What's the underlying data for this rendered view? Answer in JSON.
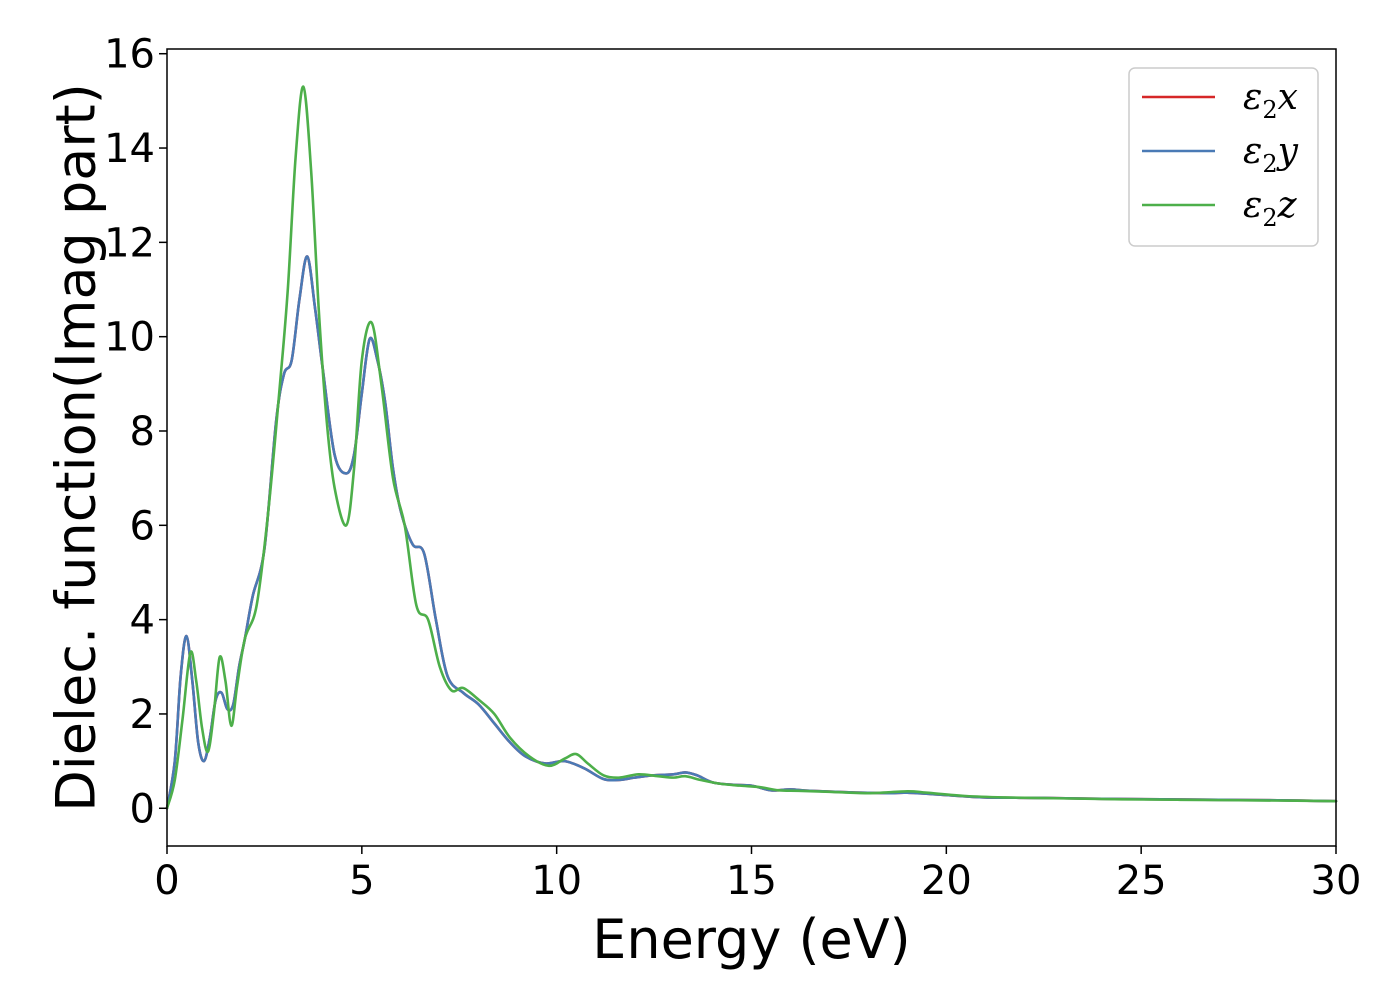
{
  "chart_data": {
    "type": "line",
    "xlabel": "Energy (eV)",
    "ylabel": "Dielec. function(Imag part)",
    "xlim": [
      0,
      30
    ],
    "ylim": [
      -0.8,
      16.1
    ],
    "xticks": [
      0,
      5,
      10,
      15,
      20,
      25,
      30
    ],
    "xtick_labels": [
      "0",
      "5",
      "10",
      "15",
      "20",
      "25",
      "30"
    ],
    "yticks": [
      0,
      2,
      4,
      6,
      8,
      10,
      12,
      14,
      16
    ],
    "ytick_labels": [
      "0",
      "2",
      "4",
      "6",
      "8",
      "10",
      "12",
      "14",
      "16"
    ],
    "grid": false,
    "legend": {
      "position": "top-right",
      "entries": [
        {
          "base": "ε",
          "sub": "2",
          "var": "x",
          "color": "#d62728"
        },
        {
          "base": "ε",
          "sub": "2",
          "var": "y",
          "color": "#4a7ab5"
        },
        {
          "base": "ε",
          "sub": "2",
          "var": "z",
          "color": "#4daf4a"
        }
      ]
    },
    "series": [
      {
        "name": "ε2x",
        "color": "#d62728",
        "x": [
          0,
          0.2,
          0.35,
          0.5,
          0.65,
          0.8,
          0.95,
          1.1,
          1.25,
          1.4,
          1.55,
          1.7,
          1.85,
          2.0,
          2.2,
          2.5,
          2.8,
          3.0,
          3.2,
          3.4,
          3.6,
          3.8,
          4.0,
          4.3,
          4.6,
          4.8,
          5.0,
          5.2,
          5.4,
          5.6,
          5.8,
          6.0,
          6.3,
          6.6,
          6.9,
          7.2,
          7.6,
          8.0,
          8.4,
          8.8,
          9.2,
          9.7,
          10.2,
          10.7,
          11.2,
          11.6,
          12.0,
          12.5,
          13.0,
          13.3,
          13.6,
          14.0,
          14.5,
          15.0,
          15.5,
          16.0,
          16.5,
          17.5,
          18.5,
          19.0,
          20.0,
          21.0,
          22.5,
          24.0,
          25.5,
          27.0,
          28.5,
          30.0
        ],
        "y": [
          0.0,
          1.0,
          2.8,
          3.65,
          2.7,
          1.4,
          1.0,
          1.5,
          2.3,
          2.45,
          2.1,
          2.2,
          3.0,
          3.6,
          4.5,
          5.5,
          8.2,
          9.2,
          9.5,
          10.8,
          11.7,
          10.6,
          9.3,
          7.5,
          7.1,
          7.5,
          8.8,
          9.95,
          9.5,
          8.6,
          7.2,
          6.3,
          5.6,
          5.4,
          4.0,
          2.8,
          2.45,
          2.2,
          1.8,
          1.4,
          1.1,
          0.95,
          1.0,
          0.85,
          0.62,
          0.6,
          0.65,
          0.7,
          0.72,
          0.76,
          0.7,
          0.55,
          0.5,
          0.48,
          0.38,
          0.4,
          0.37,
          0.34,
          0.32,
          0.33,
          0.28,
          0.23,
          0.22,
          0.2,
          0.19,
          0.18,
          0.17,
          0.15
        ]
      },
      {
        "name": "ε2y",
        "color": "#4a7ab5",
        "x": [
          0,
          0.2,
          0.35,
          0.5,
          0.65,
          0.8,
          0.95,
          1.1,
          1.25,
          1.4,
          1.55,
          1.7,
          1.85,
          2.0,
          2.2,
          2.5,
          2.8,
          3.0,
          3.2,
          3.4,
          3.6,
          3.8,
          4.0,
          4.3,
          4.6,
          4.8,
          5.0,
          5.2,
          5.4,
          5.6,
          5.8,
          6.0,
          6.3,
          6.6,
          6.9,
          7.2,
          7.6,
          8.0,
          8.4,
          8.8,
          9.2,
          9.7,
          10.2,
          10.7,
          11.2,
          11.6,
          12.0,
          12.5,
          13.0,
          13.3,
          13.6,
          14.0,
          14.5,
          15.0,
          15.5,
          16.0,
          16.5,
          17.5,
          18.5,
          19.0,
          20.0,
          21.0,
          22.5,
          24.0,
          25.5,
          27.0,
          28.5,
          30.0
        ],
        "y": [
          0.0,
          1.0,
          2.8,
          3.65,
          2.7,
          1.4,
          1.0,
          1.5,
          2.3,
          2.45,
          2.1,
          2.2,
          3.0,
          3.6,
          4.5,
          5.5,
          8.2,
          9.2,
          9.5,
          10.8,
          11.7,
          10.6,
          9.3,
          7.5,
          7.1,
          7.5,
          8.8,
          9.95,
          9.5,
          8.6,
          7.2,
          6.3,
          5.6,
          5.4,
          4.0,
          2.8,
          2.45,
          2.2,
          1.8,
          1.4,
          1.1,
          0.95,
          1.0,
          0.85,
          0.62,
          0.6,
          0.65,
          0.7,
          0.72,
          0.76,
          0.7,
          0.55,
          0.5,
          0.48,
          0.38,
          0.4,
          0.37,
          0.34,
          0.32,
          0.33,
          0.28,
          0.23,
          0.22,
          0.2,
          0.19,
          0.18,
          0.17,
          0.15
        ]
      },
      {
        "name": "ε2z",
        "color": "#4daf4a",
        "x": [
          0,
          0.2,
          0.4,
          0.6,
          0.75,
          0.9,
          1.05,
          1.2,
          1.35,
          1.5,
          1.65,
          1.8,
          2.0,
          2.3,
          2.6,
          2.9,
          3.1,
          3.3,
          3.5,
          3.7,
          3.9,
          4.1,
          4.3,
          4.6,
          4.8,
          5.0,
          5.25,
          5.5,
          5.8,
          6.1,
          6.4,
          6.7,
          7.0,
          7.3,
          7.6,
          8.0,
          8.4,
          8.8,
          9.3,
          9.8,
          10.2,
          10.5,
          10.8,
          11.2,
          11.6,
          12.1,
          12.6,
          13.0,
          13.3,
          13.7,
          14.2,
          14.7,
          15.2,
          15.7,
          16.2,
          17.0,
          18.0,
          19.0,
          19.5,
          20.5,
          21.5,
          23.0,
          24.5,
          26.0,
          27.5,
          29.0,
          30.0
        ],
        "y": [
          0.0,
          0.6,
          1.9,
          3.3,
          2.7,
          1.7,
          1.2,
          2.0,
          3.2,
          2.7,
          1.75,
          2.6,
          3.6,
          4.3,
          6.3,
          9.0,
          11.0,
          13.8,
          15.3,
          13.5,
          10.5,
          8.2,
          6.8,
          6.0,
          7.2,
          9.5,
          10.3,
          9.0,
          7.0,
          6.0,
          4.3,
          4.0,
          3.0,
          2.5,
          2.55,
          2.3,
          2.0,
          1.5,
          1.1,
          0.9,
          1.05,
          1.15,
          0.95,
          0.7,
          0.65,
          0.72,
          0.68,
          0.65,
          0.68,
          0.6,
          0.52,
          0.48,
          0.45,
          0.38,
          0.37,
          0.35,
          0.32,
          0.36,
          0.33,
          0.26,
          0.23,
          0.21,
          0.19,
          0.18,
          0.17,
          0.16,
          0.15
        ]
      }
    ]
  }
}
